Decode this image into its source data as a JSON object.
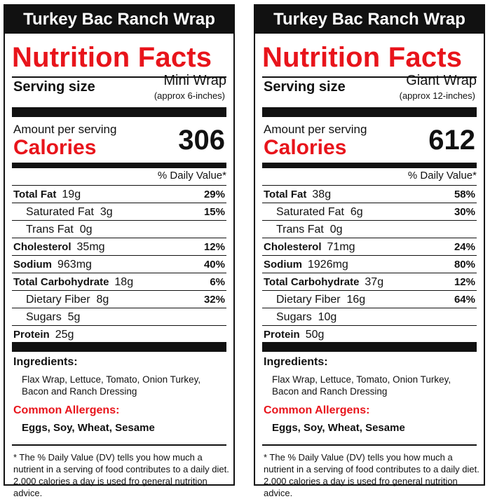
{
  "panels": [
    {
      "title": "Turkey Bac Ranch Wrap",
      "heading": "Nutrition Facts",
      "serving_label": "Serving size",
      "serving_name": "Mini Wrap",
      "serving_sub": "(approx 6-inches)",
      "amount_label": "Amount per serving",
      "calories_label": "Calories",
      "calories": "306",
      "dv_header": "% Daily Value*",
      "nutrients": [
        {
          "name": "Total Fat",
          "amount": "19g",
          "pct": "29%"
        },
        {
          "name": "Saturated Fat",
          "amount": "3g",
          "pct": "15%"
        },
        {
          "name": "Trans Fat",
          "amount": "0g",
          "pct": ""
        },
        {
          "name": "Cholesterol",
          "amount": "35mg",
          "pct": "12%"
        },
        {
          "name": "Sodium",
          "amount": "963mg",
          "pct": "40%"
        },
        {
          "name": "Total Carbohydrate",
          "amount": "18g",
          "pct": "6%"
        },
        {
          "name": "Dietary Fiber",
          "amount": "8g",
          "pct": "32%"
        },
        {
          "name": "Sugars",
          "amount": "5g",
          "pct": ""
        },
        {
          "name": "Protein",
          "amount": "25g",
          "pct": ""
        }
      ],
      "ingredients_label": "Ingredients:",
      "ingredients": "Flax Wrap,  Lettuce, Tomato, Onion Turkey, Bacon and Ranch Dressing",
      "allergens_label": "Common Allergens:",
      "allergens": "Eggs, Soy, Wheat, Sesame",
      "footnote": "* The % Daily Value (DV) tells you how much a nutrient in a serving of food contributes to a daily diet.  2,000 calories a day is used fro general nutrition advice."
    },
    {
      "title": "Turkey Bac Ranch Wrap",
      "heading": "Nutrition Facts",
      "serving_label": "Serving size",
      "serving_name": "Giant Wrap",
      "serving_sub": "(approx 12-inches)",
      "amount_label": "Amount per serving",
      "calories_label": "Calories",
      "calories": "612",
      "dv_header": "% Daily Value*",
      "nutrients": [
        {
          "name": "Total Fat",
          "amount": "38g",
          "pct": "58%"
        },
        {
          "name": "Saturated Fat",
          "amount": "6g",
          "pct": "30%"
        },
        {
          "name": "Trans Fat",
          "amount": "0g",
          "pct": ""
        },
        {
          "name": "Cholesterol",
          "amount": "71mg",
          "pct": "24%"
        },
        {
          "name": "Sodium",
          "amount": "1926mg",
          "pct": "80%"
        },
        {
          "name": "Total Carbohydrate",
          "amount": "37g",
          "pct": "12%"
        },
        {
          "name": "Dietary Fiber",
          "amount": "16g",
          "pct": "64%"
        },
        {
          "name": "Sugars",
          "amount": "10g",
          "pct": ""
        },
        {
          "name": "Protein",
          "amount": "50g",
          "pct": ""
        }
      ],
      "ingredients_label": "Ingredients:",
      "ingredients": "Flax Wrap, Lettuce, Tomato, Onion Turkey, Bacon and Ranch Dressing",
      "allergens_label": "Common Allergens:",
      "allergens": "Eggs, Soy, Wheat, Sesame",
      "footnote": "* The % Daily Value (DV) tells you how much a nutrient in a serving of food contributes to a daily diet.  2,000 calories a day is used fro general nutrition advice."
    }
  ]
}
